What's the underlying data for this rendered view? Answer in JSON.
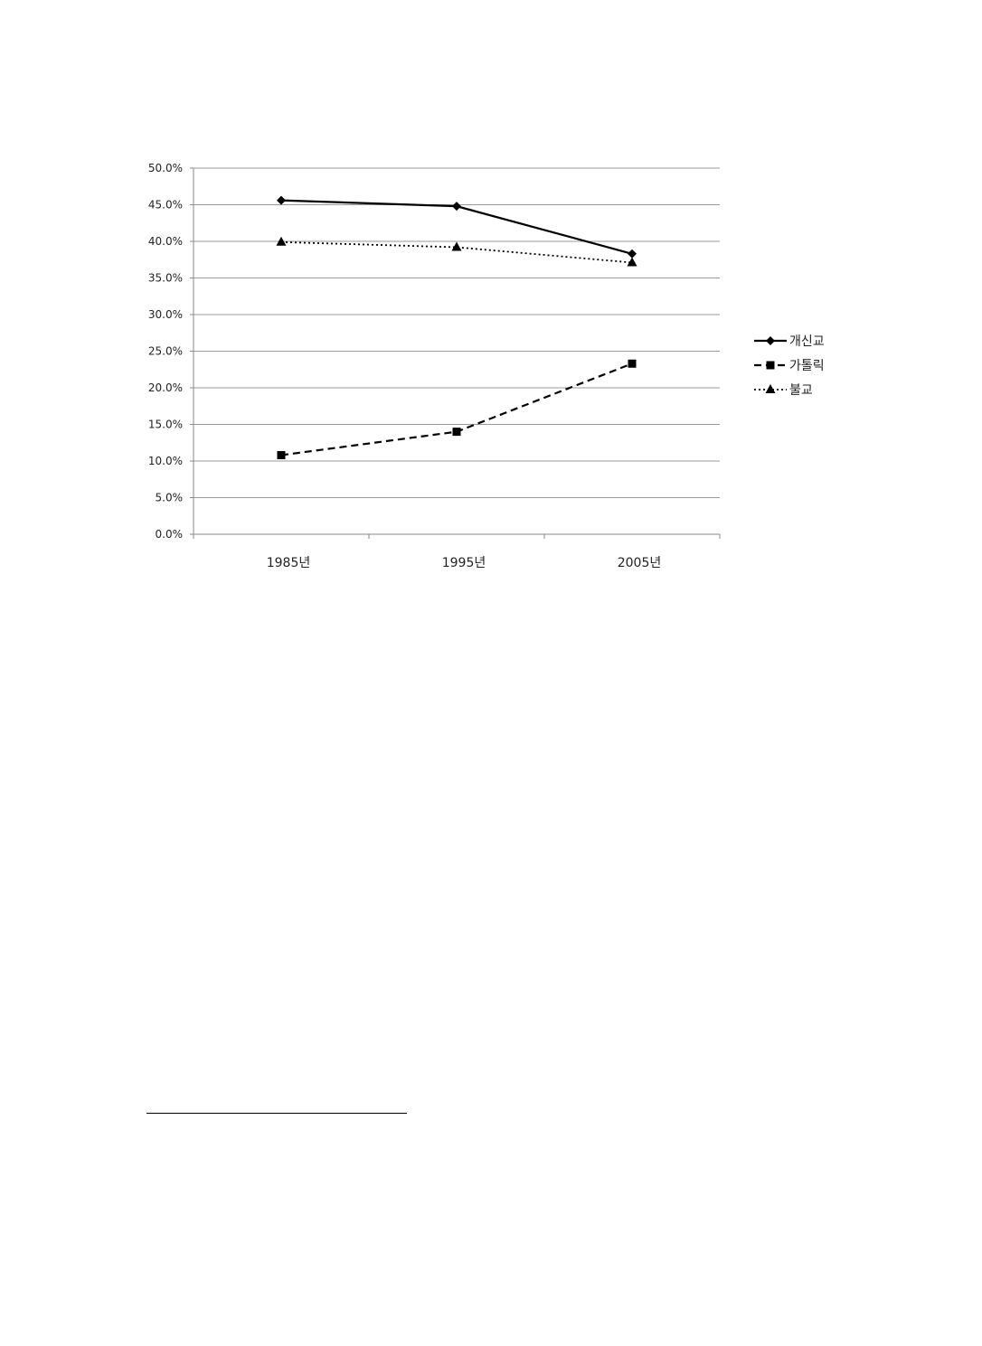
{
  "chart_data": {
    "type": "line",
    "categories": [
      "1985년",
      "1995년",
      "2005년"
    ],
    "series": [
      {
        "name": "개신교",
        "values": [
          45.6,
          44.8,
          38.3
        ],
        "style": "solid",
        "marker": "diamond",
        "color": "#000000"
      },
      {
        "name": "가톨릭",
        "values": [
          10.8,
          14.0,
          23.3
        ],
        "style": "dashed",
        "marker": "square",
        "color": "#000000"
      },
      {
        "name": "불교",
        "values": [
          39.9,
          39.2,
          37.1
        ],
        "style": "dotted",
        "marker": "triangle",
        "color": "#000000"
      }
    ],
    "y_ticks": [
      "0.0%",
      "5.0%",
      "10.0%",
      "15.0%",
      "20.0%",
      "25.0%",
      "30.0%",
      "35.0%",
      "40.0%",
      "45.0%",
      "50.0%"
    ],
    "ylim": [
      0,
      50
    ],
    "y_step": 5,
    "grid": true,
    "legend_position": "right"
  }
}
